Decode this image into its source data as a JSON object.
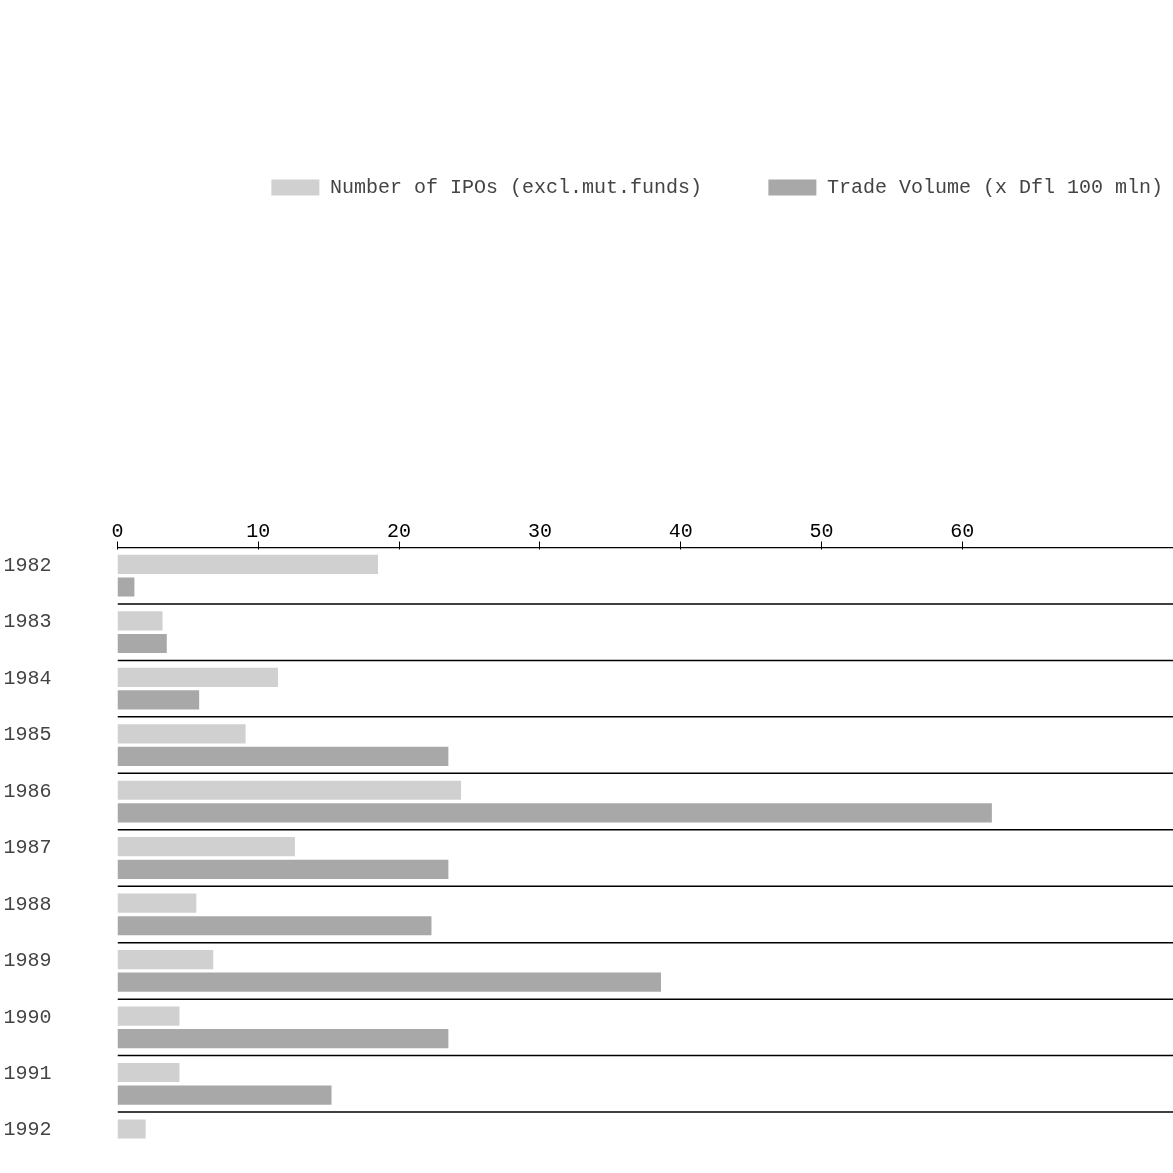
{
  "chart_data": {
    "type": "bar",
    "orientation": "horizontal",
    "categories": [
      "1982",
      "1983",
      "1984",
      "1985",
      "1986",
      "1987",
      "1988",
      "1989",
      "1990",
      "1991",
      "1992"
    ],
    "series": [
      {
        "name": "Number of IPOs (excl.mut.funds)",
        "color": "#d0d0d0",
        "values": [
          18.5,
          3.2,
          11.4,
          9.1,
          24.4,
          12.6,
          5.6,
          6.8,
          4.4,
          4.4,
          2.0
        ]
      },
      {
        "name": "Trade Volume (x Dfl 100 mln)",
        "color": "#a8a8a8",
        "values": [
          1.2,
          3.5,
          5.8,
          23.5,
          62.1,
          23.5,
          22.3,
          38.6,
          23.5,
          15.2,
          null
        ]
      }
    ],
    "xlim": [
      0,
      75
    ],
    "xticks": [
      0,
      10,
      20,
      30,
      40,
      50,
      60
    ],
    "grid": "y",
    "legend": "top"
  }
}
